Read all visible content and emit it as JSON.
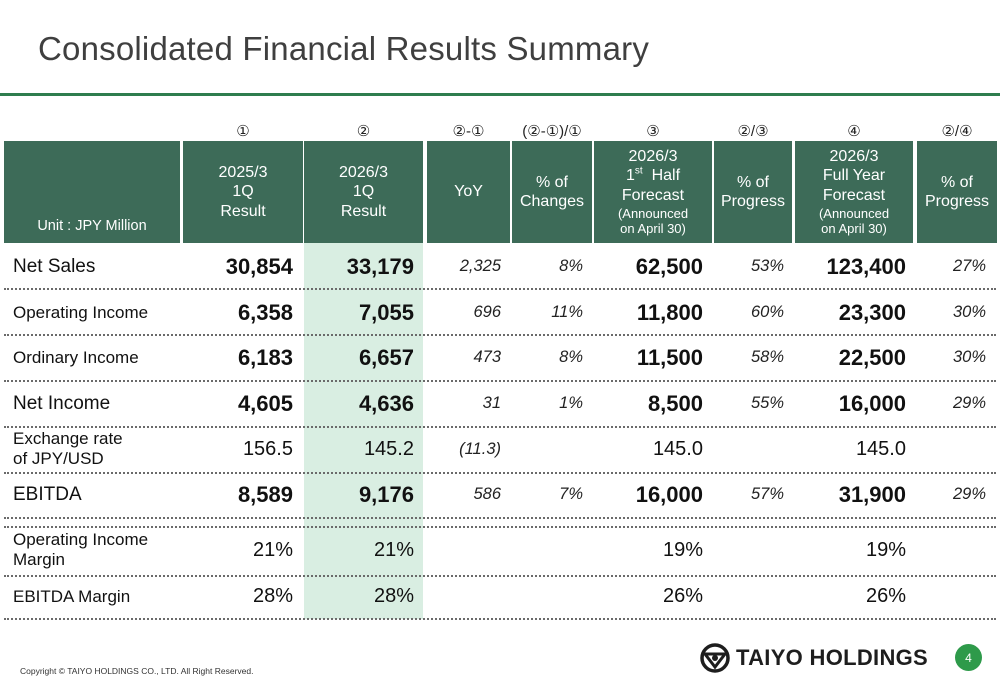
{
  "title": "Consolidated Financial Results Summary",
  "header": {
    "unit": "Unit : JPY Million",
    "col_numbers": [
      "①",
      "②",
      "②-①",
      "(②-①)/①",
      "③",
      "②/③",
      "④",
      "②/④"
    ],
    "col1": [
      "2025/3",
      "1Q",
      "Result"
    ],
    "col2": [
      "2026/3",
      "1Q",
      "Result"
    ],
    "col3": "YoY",
    "col4": [
      "% of",
      "Changes"
    ],
    "col5": {
      "line1": "2026/3",
      "half_num": "1",
      "half_sup": "st",
      "half_word": "Half",
      "line3": "Forecast",
      "note1": "(Announced",
      "note2": "on April 30)"
    },
    "col6": [
      "% of",
      "Progress"
    ],
    "col7": {
      "line1": "2026/3",
      "line2": "Full Year",
      "line3": "Forecast",
      "note1": "(Announced",
      "note2": "on April 30)"
    },
    "col8": [
      "% of",
      "Progress"
    ]
  },
  "rows": [
    {
      "label": "Net Sales",
      "v1": "30,854",
      "v2": "33,179",
      "yoy": "2,325",
      "chg": "8%",
      "h1": "62,500",
      "p1": "53%",
      "fy": "123,400",
      "p2": "27%"
    },
    {
      "label": "Operating Income",
      "v1": "6,358",
      "v2": "7,055",
      "yoy": "696",
      "chg": "11%",
      "h1": "11,800",
      "p1": "60%",
      "fy": "23,300",
      "p2": "30%"
    },
    {
      "label": "Ordinary Income",
      "v1": "6,183",
      "v2": "6,657",
      "yoy": "473",
      "chg": "8%",
      "h1": "11,500",
      "p1": "58%",
      "fy": "22,500",
      "p2": "30%"
    },
    {
      "label": "Net Income",
      "v1": "4,605",
      "v2": "4,636",
      "yoy": "31",
      "chg": "1%",
      "h1": "8,500",
      "p1": "55%",
      "fy": "16,000",
      "p2": "29%"
    },
    {
      "label1": "Exchange rate",
      "label2": "of JPY/USD",
      "v1": "156.5",
      "v2": "145.2",
      "yoy": "(11.3)",
      "h1": "145.0",
      "fy": "145.0"
    },
    {
      "label": "EBITDA",
      "v1": "8,589",
      "v2": "9,176",
      "yoy": "586",
      "chg": "7%",
      "h1": "16,000",
      "p1": "57%",
      "fy": "31,900",
      "p2": "29%"
    },
    {
      "label1": "Operating Income",
      "label2": "Margin",
      "v1": "21%",
      "v2": "21%",
      "h1": "19%",
      "fy": "19%"
    },
    {
      "label": "EBITDA Margin",
      "v1": "28%",
      "v2": "28%",
      "h1": "26%",
      "fy": "26%"
    }
  ],
  "footer": {
    "copyright": "Copyright © TAIYO HOLDINGS CO., LTD. All Right Reserved.",
    "logo_text": "TAIYO HOLDINGS",
    "page_number": "4"
  },
  "colors": {
    "header_bg": "#3d6b58",
    "highlight_col": "#d9eee2",
    "title_rule": "#2f7d4e",
    "page_badge": "#2e9a4a"
  }
}
